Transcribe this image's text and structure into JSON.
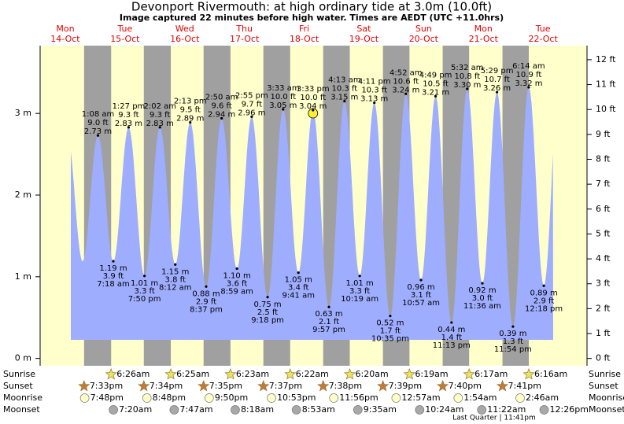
{
  "chart_data": {
    "type": "tide",
    "title": "Devonport Rivermouth: at high  ordinary tide at 3.0m (10.0ft)",
    "subtitle": "Image captured 22 minutes before high water. Times are AEDT (UTC +11.0hrs)",
    "ylim": [
      -0.09,
      3.83
    ],
    "yticks": [
      {
        "value": 0,
        "label": "0 m"
      },
      {
        "value": 1,
        "label": "1 m"
      },
      {
        "value": 2,
        "label": "2 m"
      },
      {
        "value": 3,
        "label": "3 m"
      }
    ],
    "y2lim": [
      -0.295,
      12.566
    ],
    "y2ticks": [
      {
        "value": 0,
        "label": "0 ft"
      },
      {
        "value": 1,
        "label": "1 ft"
      },
      {
        "value": 2,
        "label": "2 ft"
      },
      {
        "value": 3,
        "label": "3 ft"
      },
      {
        "value": 4,
        "label": "4 ft"
      },
      {
        "value": 5,
        "label": "5 ft"
      },
      {
        "value": 6,
        "label": "6 ft"
      },
      {
        "value": 7,
        "label": "7 ft"
      },
      {
        "value": 8,
        "label": "8 ft"
      },
      {
        "value": 9,
        "label": "9 ft"
      },
      {
        "value": 10,
        "label": "10 ft"
      },
      {
        "value": 11,
        "label": "11 ft"
      },
      {
        "value": 12,
        "label": "12 ft"
      }
    ],
    "row_labels": [
      "Sunrise",
      "Sunset",
      "Moonrise",
      "Moonset"
    ],
    "moon_phase": "Last Quarter | 11:41pm",
    "days": [
      {
        "name": "Mon",
        "date": "14-Oct",
        "sunset": "7:33pm",
        "moonrise": "7:48pm",
        "tides": []
      },
      {
        "name": "Tue",
        "date": "15-Oct",
        "sunrise": "6:26am",
        "sunset": "7:34pm",
        "moonrise": "8:48pm",
        "moonset": "7:20am",
        "tides": [
          {
            "time": "1:08 am",
            "value": 2.73,
            "value_label": "2.73 m",
            "ft": "9.0 ft"
          },
          {
            "time": "7:18 am",
            "value": 1.19,
            "value_label": "1.19 m",
            "ft": "3.9 ft"
          },
          {
            "time": "1:27 pm",
            "value": 2.83,
            "value_label": "2.83 m",
            "ft": "9.3 ft"
          },
          {
            "time": "7:50 pm",
            "value": 1.01,
            "value_label": "1.01 m",
            "ft": "3.3 ft"
          }
        ]
      },
      {
        "name": "Wed",
        "date": "16-Oct",
        "sunrise": "6:25am",
        "sunset": "7:35pm",
        "moonrise": "9:50pm",
        "moonset": "7:47am",
        "tides": [
          {
            "time": "2:02 am",
            "value": 2.83,
            "value_label": "2.83 m",
            "ft": "9.3 ft"
          },
          {
            "time": "8:12 am",
            "value": 1.15,
            "value_label": "1.15 m",
            "ft": "3.8 ft"
          },
          {
            "time": "2:13 pm",
            "value": 2.89,
            "value_label": "2.89 m",
            "ft": "9.5 ft"
          },
          {
            "time": "8:37 pm",
            "value": 0.88,
            "value_label": "0.88 m",
            "ft": "2.9 ft"
          }
        ]
      },
      {
        "name": "Thu",
        "date": "17-Oct",
        "sunrise": "6:23am",
        "sunset": "7:37pm",
        "moonrise": "10:53pm",
        "moonset": "8:18am",
        "tides": [
          {
            "time": "2:50 am",
            "value": 2.94,
            "value_label": "2.94 m",
            "ft": "9.6 ft"
          },
          {
            "time": "8:59 am",
            "value": 1.1,
            "value_label": "1.10 m",
            "ft": "3.6 ft"
          },
          {
            "time": "2:55 pm",
            "value": 2.96,
            "value_label": "2.96 m",
            "ft": "9.7 ft"
          },
          {
            "time": "9:18 pm",
            "value": 0.75,
            "value_label": "0.75 m",
            "ft": "2.5 ft"
          }
        ]
      },
      {
        "name": "Fri",
        "date": "18-Oct",
        "sunrise": "6:22am",
        "sunset": "7:38pm",
        "moonrise": "11:56pm",
        "moonset": "8:53am",
        "tides": [
          {
            "time": "3:33 am",
            "value": 3.05,
            "value_label": "3.05 m",
            "ft": "10.0 ft"
          },
          {
            "time": "9:41 am",
            "value": 1.05,
            "value_label": "1.05 m",
            "ft": "3.4 ft"
          },
          {
            "time": "3:33 pm",
            "value": 3.04,
            "value_label": "3.04 m",
            "ft": "10.0 ft"
          },
          {
            "time": "9:57 pm",
            "value": 0.63,
            "value_label": "0.63 m",
            "ft": "2.1 ft"
          }
        ]
      },
      {
        "name": "Sat",
        "date": "19-Oct",
        "sunrise": "6:20am",
        "sunset": "7:39pm",
        "moonset": "9:35am",
        "tides": [
          {
            "time": "4:13 am",
            "value": 3.15,
            "value_label": "3.15 m",
            "ft": "10.3 ft"
          },
          {
            "time": "10:19 am",
            "value": 1.01,
            "value_label": "1.01 m",
            "ft": "3.3 ft"
          },
          {
            "time": "4:11 pm",
            "value": 3.13,
            "value_label": "3.13 m",
            "ft": "10.3 ft"
          },
          {
            "time": "10:35 pm",
            "value": 0.52,
            "value_label": "0.52 m",
            "ft": "1.7 ft"
          }
        ]
      },
      {
        "name": "Sun",
        "date": "20-Oct",
        "sunrise": "6:19am",
        "sunset": "7:40pm",
        "moonrise": "12:57am",
        "moonset": "10:24am",
        "tides": [
          {
            "time": "4:52 am",
            "value": 3.24,
            "value_label": "3.24 m",
            "ft": "10.6 ft"
          },
          {
            "time": "10:57 am",
            "value": 0.96,
            "value_label": "0.96 m",
            "ft": "3.1 ft"
          },
          {
            "time": "4:49 pm",
            "value": 3.21,
            "value_label": "3.21 m",
            "ft": "10.5 ft"
          },
          {
            "time": "11:13 pm",
            "value": 0.44,
            "value_label": "0.44 m",
            "ft": "1.4 ft"
          }
        ]
      },
      {
        "name": "Mon",
        "date": "21-Oct",
        "sunrise": "6:17am",
        "sunset": "7:41pm",
        "moonrise": "1:54am",
        "moonset": "11:22am",
        "tides": [
          {
            "time": "5:32 am",
            "value": 3.3,
            "value_label": "3.30 m",
            "ft": "10.8 ft"
          },
          {
            "time": "11:36 am",
            "value": 0.92,
            "value_label": "0.92 m",
            "ft": "3.0 ft"
          },
          {
            "time": "5:29 pm",
            "value": 3.26,
            "value_label": "3.26 m",
            "ft": "10.7 ft"
          },
          {
            "time": "11:54 pm",
            "value": 0.39,
            "value_label": "0.39 m",
            "ft": "1.3 ft"
          }
        ]
      },
      {
        "name": "Tue",
        "date": "22-Oct",
        "sunrise": "6:16am",
        "moonrise": "2:46am",
        "moonset": "12:26pm",
        "tides": [
          {
            "time": "6:14 am",
            "value": 3.32,
            "value_label": "3.32 m",
            "ft": "10.9 ft"
          },
          {
            "time": "12:18 pm",
            "value": 0.89,
            "value_label": "0.89 m",
            "ft": "2.9 ft"
          }
        ]
      }
    ]
  }
}
